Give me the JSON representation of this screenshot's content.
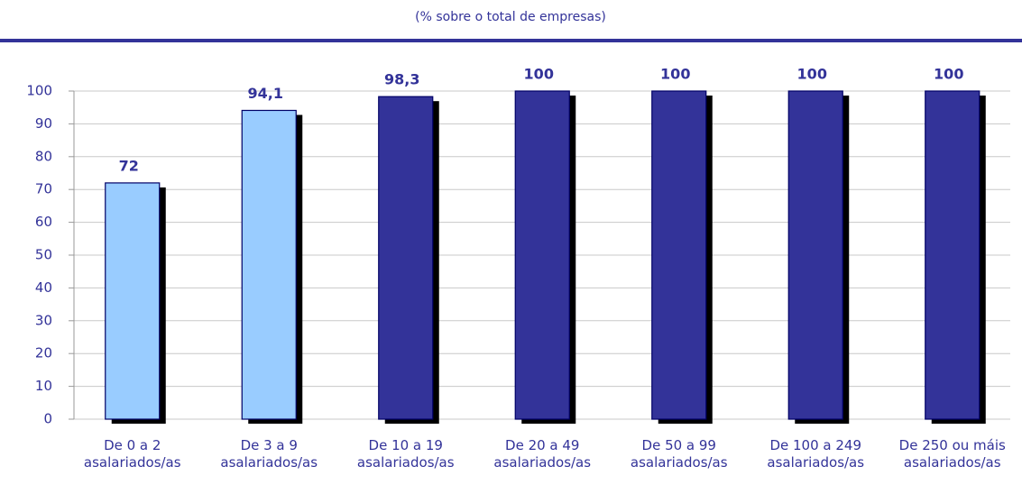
{
  "chart_data": {
    "type": "bar",
    "title": "(% sobre o total de empresas)",
    "categories": [
      "De 0 a 2 asalariados/as",
      "De 3 a 9 asalariados/as",
      "De 10 a 19 asalariados/as",
      "De 20 a 49 asalariados/as",
      "De 50 a 99 asalariados/as",
      "De 100 a 249 asalariados/as",
      "De 250 ou máis asalariados/as"
    ],
    "values": [
      72,
      94.1,
      98.3,
      100,
      100,
      100,
      100
    ],
    "value_labels": [
      "72",
      "94,1",
      "98,3",
      "100",
      "100",
      "100",
      "100"
    ],
    "colors": [
      "#99ccff",
      "#99ccff",
      "#333399",
      "#333399",
      "#333399",
      "#333399",
      "#333399"
    ],
    "ylim": [
      0,
      100
    ],
    "yticks": [
      0,
      10,
      20,
      30,
      40,
      50,
      60,
      70,
      80,
      90,
      100
    ],
    "grid": true
  }
}
